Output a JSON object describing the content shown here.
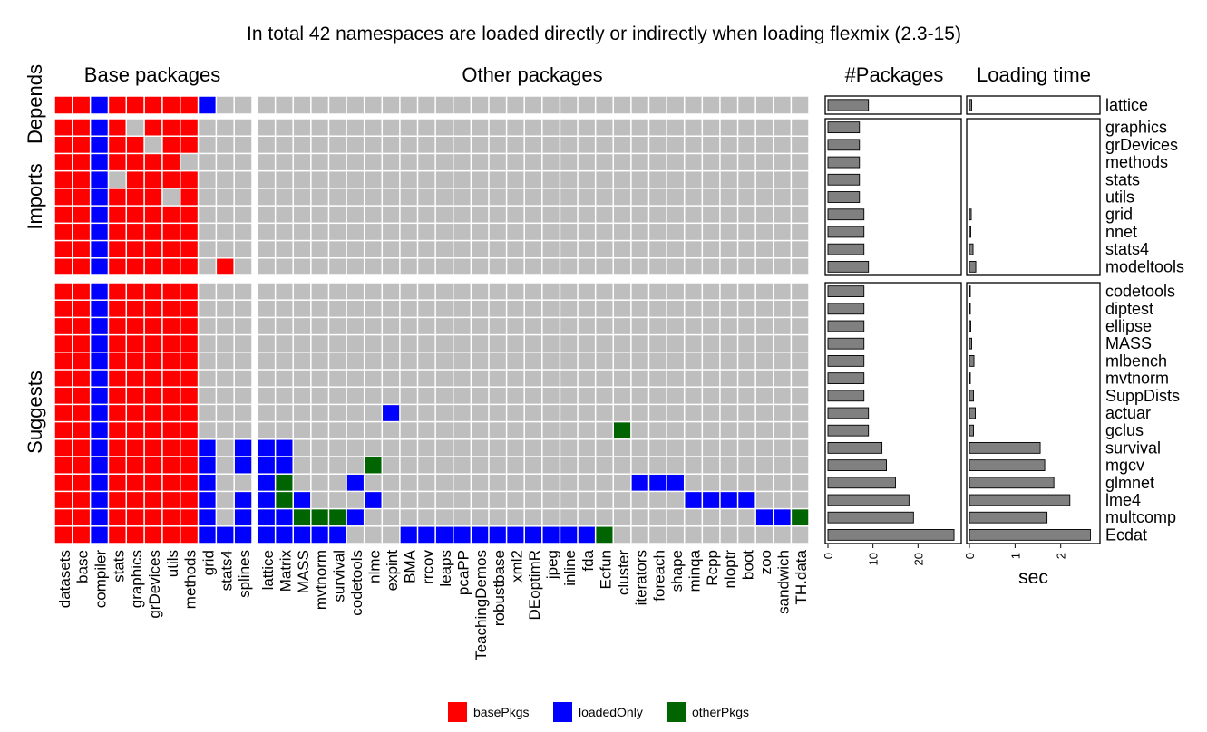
{
  "chart_data": {
    "type": "heatmap",
    "title": "In total 42 namespaces are loaded directly or indirectly when loading flexmix (2.3-15)",
    "panel_titles": {
      "base": "Base packages",
      "other": "Other packages",
      "count": "#Packages",
      "time": "Loading time"
    },
    "group_labels": [
      "Depends",
      "Imports",
      "Suggests"
    ],
    "legend": [
      {
        "key": "B",
        "label": "basePkgs",
        "color": "#ff0000"
      },
      {
        "key": "L",
        "label": "loadedOnly",
        "color": "#0000ff"
      },
      {
        "key": "O",
        "label": "otherPkgs",
        "color": "#006400"
      }
    ],
    "empty_color": "#bebebe",
    "base_columns": [
      "datasets",
      "base",
      "compiler",
      "stats",
      "graphics",
      "grDevices",
      "utils",
      "methods",
      "grid",
      "stats4",
      "splines"
    ],
    "other_columns": [
      "lattice",
      "Matrix",
      "MASS",
      "mvtnorm",
      "survival",
      "codetools",
      "nlme",
      "expint",
      "BMA",
      "rrcov",
      "leaps",
      "pcaPP",
      "TeachingDemos",
      "robustbase",
      "xml2",
      "DEoptimR",
      "jpeg",
      "inline",
      "fda",
      "Ecfun",
      "cluster",
      "iterators",
      "foreach",
      "shape",
      "minqa",
      "Rcpp",
      "nloptr",
      "boot",
      "zoo",
      "sandwich",
      "TH.data"
    ],
    "rows": [
      {
        "name": "lattice",
        "group": "Depends",
        "n_packages": 9,
        "load_time": 0.05,
        "base": "BBLBBBBBL..",
        "other": "..............................."
      },
      {
        "name": "graphics",
        "group": "Imports",
        "n_packages": 7,
        "load_time": 0.0,
        "base": "BBLB.BBB...",
        "other": "..............................."
      },
      {
        "name": "grDevices",
        "group": "Imports",
        "n_packages": 7,
        "load_time": 0.0,
        "base": "BBLBB.BB...",
        "other": "..............................."
      },
      {
        "name": "methods",
        "group": "Imports",
        "n_packages": 7,
        "load_time": 0.0,
        "base": "BBLBBBB....",
        "other": "..............................."
      },
      {
        "name": "stats",
        "group": "Imports",
        "n_packages": 7,
        "load_time": 0.0,
        "base": "BBL.BBBB...",
        "other": "..............................."
      },
      {
        "name": "utils",
        "group": "Imports",
        "n_packages": 7,
        "load_time": 0.0,
        "base": "BBLBBB.B...",
        "other": "..............................."
      },
      {
        "name": "grid",
        "group": "Imports",
        "n_packages": 8,
        "load_time": 0.04,
        "base": "BBLBBBBB...",
        "other": "..............................."
      },
      {
        "name": "nnet",
        "group": "Imports",
        "n_packages": 8,
        "load_time": 0.03,
        "base": "BBLBBBBB...",
        "other": "..............................."
      },
      {
        "name": "stats4",
        "group": "Imports",
        "n_packages": 8,
        "load_time": 0.08,
        "base": "BBLBBBBB...",
        "other": "..............................."
      },
      {
        "name": "modeltools",
        "group": "Imports",
        "n_packages": 9,
        "load_time": 0.14,
        "base": "BBLBBBBB.B.",
        "other": "..............................."
      },
      {
        "name": "codetools",
        "group": "Suggests",
        "n_packages": 8,
        "load_time": 0.02,
        "base": "BBLBBBBB...",
        "other": "..............................."
      },
      {
        "name": "diptest",
        "group": "Suggests",
        "n_packages": 8,
        "load_time": 0.02,
        "base": "BBLBBBBB...",
        "other": "..............................."
      },
      {
        "name": "ellipse",
        "group": "Suggests",
        "n_packages": 8,
        "load_time": 0.03,
        "base": "BBLBBBBB...",
        "other": "..............................."
      },
      {
        "name": "MASS",
        "group": "Suggests",
        "n_packages": 8,
        "load_time": 0.05,
        "base": "BBLBBBBB...",
        "other": "..............................."
      },
      {
        "name": "mlbench",
        "group": "Suggests",
        "n_packages": 8,
        "load_time": 0.1,
        "base": "BBLBBBBB...",
        "other": "..............................."
      },
      {
        "name": "mvtnorm",
        "group": "Suggests",
        "n_packages": 8,
        "load_time": 0.02,
        "base": "BBLBBBBB...",
        "other": "..............................."
      },
      {
        "name": "SuppDists",
        "group": "Suggests",
        "n_packages": 8,
        "load_time": 0.09,
        "base": "BBLBBBBB...",
        "other": "..............................."
      },
      {
        "name": "actuar",
        "group": "Suggests",
        "n_packages": 9,
        "load_time": 0.13,
        "base": "BBLBBBBB...",
        "other": ".......L......................."
      },
      {
        "name": "gclus",
        "group": "Suggests",
        "n_packages": 9,
        "load_time": 0.09,
        "base": "BBLBBBBB...",
        "other": "....................O.........."
      },
      {
        "name": "survival",
        "group": "Suggests",
        "n_packages": 12,
        "load_time": 1.55,
        "base": "BBLBBBBBL.L",
        "other": "LL............................."
      },
      {
        "name": "mgcv",
        "group": "Suggests",
        "n_packages": 13,
        "load_time": 1.65,
        "base": "BBLBBBBBL.L",
        "other": "LL....O........................"
      },
      {
        "name": "glmnet",
        "group": "Suggests",
        "n_packages": 15,
        "load_time": 1.85,
        "base": "BBLBBBBBL..",
        "other": "LO...L...............LLL......."
      },
      {
        "name": "lme4",
        "group": "Suggests",
        "n_packages": 18,
        "load_time": 2.2,
        "base": "BBLBBBBBL.L",
        "other": "LOL...L.................LLLL..."
      },
      {
        "name": "multcomp",
        "group": "Suggests",
        "n_packages": 19,
        "load_time": 1.7,
        "base": "BBLBBBBBL.L",
        "other": "LLOOOL......................LLO"
      },
      {
        "name": "Ecdat",
        "group": "Suggests",
        "n_packages": 28,
        "load_time": 2.65,
        "base": "BBLBBBBBLLL",
        "other": "LLLLL...LLLLLLLLLLLO..........."
      }
    ],
    "count_axis": {
      "ticks": [
        0,
        10,
        20
      ],
      "range": [
        0,
        29
      ]
    },
    "time_axis": {
      "ticks": [
        0,
        1,
        2
      ],
      "range": [
        0,
        2.8
      ],
      "label": "sec"
    }
  }
}
